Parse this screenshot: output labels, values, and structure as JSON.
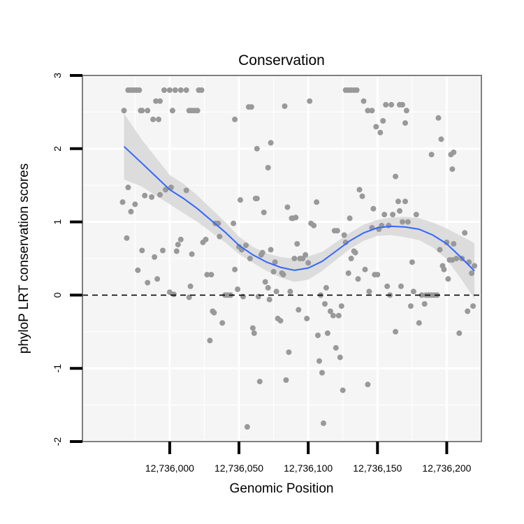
{
  "chart_data": {
    "type": "scatter",
    "title": "Conservation",
    "xlabel": "Genomic Position",
    "ylabel": "phyloP LRT conservation scores",
    "xlim": [
      12735937,
      12736225
    ],
    "ylim": [
      -2,
      3
    ],
    "x_ticks": [
      {
        "value": 12736000,
        "label": "12,736,000"
      },
      {
        "value": 12736050,
        "label": "12,736,050"
      },
      {
        "value": 12736100,
        "label": "12,736,100"
      },
      {
        "value": 12736150,
        "label": "12,736,150"
      },
      {
        "value": 12736200,
        "label": "12,736,200"
      }
    ],
    "y_ticks": [
      {
        "value": -2,
        "label": "-2"
      },
      {
        "value": -1,
        "label": "-1"
      },
      {
        "value": 0,
        "label": "0"
      },
      {
        "value": 1,
        "label": "1"
      },
      {
        "value": 2,
        "label": "2"
      },
      {
        "value": 3,
        "label": "3"
      }
    ],
    "reference_line": {
      "y": 0,
      "style": "dashed"
    },
    "grid": true,
    "background": "#f5f5f5",
    "point_color": "#999999",
    "smooth_color": "#3366FF",
    "ribbon_color": "#d9d9d9",
    "points": [
      [
        12735970,
        2.8
      ],
      [
        12735972,
        2.8
      ],
      [
        12735974,
        2.8
      ],
      [
        12735976,
        2.8
      ],
      [
        12735978,
        2.8
      ],
      [
        12735979,
        2.52
      ],
      [
        12735984,
        2.52
      ],
      [
        12735990,
        2.65
      ],
      [
        12735993,
        2.65
      ],
      [
        12735996,
        2.8
      ],
      [
        12736000,
        2.8
      ],
      [
        12736002,
        2.52
      ],
      [
        12736004,
        2.8
      ],
      [
        12736008,
        2.8
      ],
      [
        12736012,
        2.8
      ],
      [
        12736014,
        2.52
      ],
      [
        12736016,
        2.52
      ],
      [
        12736018,
        2.52
      ],
      [
        12736020,
        2.52
      ],
      [
        12736021,
        2.8
      ],
      [
        12736023,
        2.8
      ],
      [
        12735967,
        2.52
      ],
      [
        12735980,
        2.52
      ],
      [
        12735988,
        2.4
      ],
      [
        12735992,
        2.4
      ],
      [
        12736057,
        2.57
      ],
      [
        12736059,
        2.57
      ],
      [
        12736047,
        2.4
      ],
      [
        12736063,
        2.0
      ],
      [
        12736073,
        2.08
      ],
      [
        12736071,
        1.74
      ],
      [
        12736083,
        2.58
      ],
      [
        12736101,
        2.65
      ],
      [
        12736127,
        2.8
      ],
      [
        12736129,
        2.8
      ],
      [
        12736131,
        2.8
      ],
      [
        12736133,
        2.8
      ],
      [
        12736135,
        2.8
      ],
      [
        12736140,
        2.65
      ],
      [
        12736143,
        2.52
      ],
      [
        12736146,
        2.52
      ],
      [
        12736149,
        2.3
      ],
      [
        12736152,
        2.22
      ],
      [
        12736154,
        2.38
      ],
      [
        12736156,
        2.6
      ],
      [
        12736160,
        2.6
      ],
      [
        12736166,
        2.6
      ],
      [
        12736168,
        2.6
      ],
      [
        12736171,
        2.52
      ],
      [
        12736170,
        2.35
      ],
      [
        12736163,
        1.62
      ],
      [
        12736194,
        2.42
      ],
      [
        12736196,
        2.13
      ],
      [
        12736189,
        1.92
      ],
      [
        12736203,
        1.92
      ],
      [
        12736205,
        1.95
      ],
      [
        12736204,
        1.72
      ],
      [
        12735966,
        1.27
      ],
      [
        12735969,
        0.78
      ],
      [
        12735970,
        1.47
      ],
      [
        12735972,
        1.14
      ],
      [
        12735975,
        1.24
      ],
      [
        12735977,
        0.34
      ],
      [
        12735980,
        0.61
      ],
      [
        12735982,
        1.36
      ],
      [
        12735984,
        0.17
      ],
      [
        12735987,
        1.34
      ],
      [
        12735989,
        0.52
      ],
      [
        12735991,
        0.22
      ],
      [
        12735993,
        1.37
      ],
      [
        12735995,
        0.61
      ],
      [
        12735997,
        1.44
      ],
      [
        12736000,
        0.04
      ],
      [
        12736001,
        1.47
      ],
      [
        12736003,
        0.01
      ],
      [
        12736005,
        0.6
      ],
      [
        12736006,
        0.69
      ],
      [
        12736008,
        0.76
      ],
      [
        12736012,
        1.43
      ],
      [
        12736014,
        -0.03
      ],
      [
        12736015,
        0.12
      ],
      [
        12736016,
        0.56
      ],
      [
        12736024,
        0.72
      ],
      [
        12736026,
        0.76
      ],
      [
        12736027,
        0.28
      ],
      [
        12736029,
        -0.62
      ],
      [
        12736030,
        0.28
      ],
      [
        12736031,
        -0.22
      ],
      [
        12736032,
        -0.24
      ],
      [
        12736033,
        0.98
      ],
      [
        12736035,
        0.98
      ],
      [
        12736036,
        0.8
      ],
      [
        12736038,
        -0.38
      ],
      [
        12736040,
        0.0
      ],
      [
        12736042,
        0.0
      ],
      [
        12736044,
        0.0
      ],
      [
        12736046,
        0.98
      ],
      [
        12736047,
        0.35
      ],
      [
        12736049,
        0.08
      ],
      [
        12736050,
        0.66
      ],
      [
        12736051,
        1.3
      ],
      [
        12736052,
        0.62
      ],
      [
        12736053,
        -0.02
      ],
      [
        12736055,
        0.68
      ],
      [
        12736056,
        -1.8
      ],
      [
        12736058,
        0.5
      ],
      [
        12736060,
        -0.45
      ],
      [
        12736061,
        -0.52
      ],
      [
        12736062,
        1.32
      ],
      [
        12736063,
        1.32
      ],
      [
        12736064,
        -0.02
      ],
      [
        12736065,
        -1.18
      ],
      [
        12736066,
        0.55
      ],
      [
        12736067,
        0.58
      ],
      [
        12736068,
        1.13
      ],
      [
        12736069,
        0.18
      ],
      [
        12736071,
        0.1
      ],
      [
        12736072,
        -0.06
      ],
      [
        12736073,
        0.62
      ],
      [
        12736075,
        0.32
      ],
      [
        12736076,
        0.45
      ],
      [
        12736077,
        0.05
      ],
      [
        12736078,
        -0.32
      ],
      [
        12736080,
        -0.35
      ],
      [
        12736081,
        0.3
      ],
      [
        12736082,
        0.28
      ],
      [
        12736084,
        -1.16
      ],
      [
        12736085,
        1.2
      ],
      [
        12736086,
        -0.78
      ],
      [
        12736087,
        0.05
      ],
      [
        12736088,
        1.05
      ],
      [
        12736089,
        1.05
      ],
      [
        12736090,
        0.5
      ],
      [
        12736091,
        1.06
      ],
      [
        12736092,
        0.7
      ],
      [
        12736093,
        -0.2
      ],
      [
        12736094,
        0.5
      ],
      [
        12736096,
        0.5
      ],
      [
        12736098,
        0.55
      ],
      [
        12736099,
        -0.32
      ],
      [
        12736100,
        0.44
      ],
      [
        12736102,
        0.98
      ],
      [
        12736104,
        0.95
      ],
      [
        12736106,
        1.27
      ],
      [
        12736107,
        -0.55
      ],
      [
        12736108,
        -0.9
      ],
      [
        12736109,
        0.0
      ],
      [
        12736110,
        -1.06
      ],
      [
        12736111,
        -1.75
      ],
      [
        12736112,
        -0.12
      ],
      [
        12736113,
        0.1
      ],
      [
        12736114,
        -0.52
      ],
      [
        12736116,
        -0.22
      ],
      [
        12736118,
        -0.28
      ],
      [
        12736119,
        0.88
      ],
      [
        12736120,
        -0.72
      ],
      [
        12736121,
        0.88
      ],
      [
        12736122,
        -0.28
      ],
      [
        12736123,
        -0.85
      ],
      [
        12736124,
        -0.15
      ],
      [
        12736125,
        -1.3
      ],
      [
        12736126,
        0.82
      ],
      [
        12736127,
        0.72
      ],
      [
        12736129,
        0.3
      ],
      [
        12736130,
        1.05
      ],
      [
        12736131,
        0.5
      ],
      [
        12736133,
        0.6
      ],
      [
        12736134,
        0.58
      ],
      [
        12736136,
        0.22
      ],
      [
        12736137,
        1.44
      ],
      [
        12736139,
        1.35
      ],
      [
        12736141,
        0.35
      ],
      [
        12736143,
        -1.22
      ],
      [
        12736144,
        0.05
      ],
      [
        12736146,
        0.92
      ],
      [
        12736147,
        1.18
      ],
      [
        12736148,
        0.28
      ],
      [
        12736150,
        0.28
      ],
      [
        12736151,
        0.9
      ],
      [
        12736153,
        0.95
      ],
      [
        12736155,
        1.1
      ],
      [
        12736157,
        0.12
      ],
      [
        12736158,
        0.95
      ],
      [
        12736159,
        0.0
      ],
      [
        12736161,
        1.1
      ],
      [
        12736163,
        -0.5
      ],
      [
        12736165,
        1.28
      ],
      [
        12736166,
        1.15
      ],
      [
        12736167,
        0.12
      ],
      [
        12736168,
        1.0
      ],
      [
        12736170,
        1.28
      ],
      [
        12736172,
        1.0
      ],
      [
        12736174,
        -0.15
      ],
      [
        12736175,
        0.45
      ],
      [
        12736176,
        0.05
      ],
      [
        12736178,
        1.1
      ],
      [
        12736180,
        -0.38
      ],
      [
        12736182,
        0.0
      ],
      [
        12736184,
        -0.12
      ],
      [
        12736185,
        0.0
      ],
      [
        12736187,
        0.0
      ],
      [
        12736189,
        0.0
      ],
      [
        12736191,
        0.0
      ],
      [
        12736193,
        0.0
      ],
      [
        12736195,
        0.62
      ],
      [
        12736197,
        0.4
      ],
      [
        12736198,
        0.35
      ],
      [
        12736200,
        0.72
      ],
      [
        12736201,
        0.22
      ],
      [
        12736202,
        0.48
      ],
      [
        12736204,
        0.48
      ],
      [
        12736205,
        0.7
      ],
      [
        12736207,
        0.5
      ],
      [
        12736209,
        -0.52
      ],
      [
        12736211,
        0.5
      ],
      [
        12736213,
        0.85
      ],
      [
        12736215,
        -0.22
      ],
      [
        12736216,
        0.45
      ],
      [
        12736218,
        0.3
      ],
      [
        12736219,
        -0.15
      ],
      [
        12736220,
        0.4
      ]
    ],
    "smooth": {
      "x": [
        12735967,
        12735980,
        12735990,
        12736000,
        12736010,
        12736020,
        12736030,
        12736040,
        12736050,
        12736060,
        12736070,
        12736080,
        12736090,
        12736100,
        12736110,
        12736120,
        12736130,
        12736140,
        12736150,
        12736160,
        12736170,
        12736180,
        12736190,
        12736200,
        12736210,
        12736220
      ],
      "y": [
        2.03,
        1.8,
        1.62,
        1.44,
        1.32,
        1.18,
        1.02,
        0.86,
        0.68,
        0.55,
        0.45,
        0.38,
        0.34,
        0.37,
        0.46,
        0.6,
        0.74,
        0.85,
        0.92,
        0.94,
        0.93,
        0.9,
        0.82,
        0.7,
        0.52,
        0.33
      ],
      "lower": [
        1.58,
        1.48,
        1.36,
        1.24,
        1.12,
        1.0,
        0.86,
        0.72,
        0.56,
        0.44,
        0.33,
        0.24,
        0.18,
        0.21,
        0.33,
        0.48,
        0.63,
        0.74,
        0.81,
        0.82,
        0.79,
        0.75,
        0.65,
        0.49,
        0.23,
        -0.05
      ],
      "upper": [
        2.48,
        2.12,
        1.88,
        1.64,
        1.52,
        1.36,
        1.18,
        1.0,
        0.8,
        0.66,
        0.57,
        0.52,
        0.5,
        0.53,
        0.59,
        0.72,
        0.85,
        0.96,
        1.03,
        1.06,
        1.07,
        1.05,
        0.99,
        0.91,
        0.81,
        0.71
      ]
    }
  }
}
